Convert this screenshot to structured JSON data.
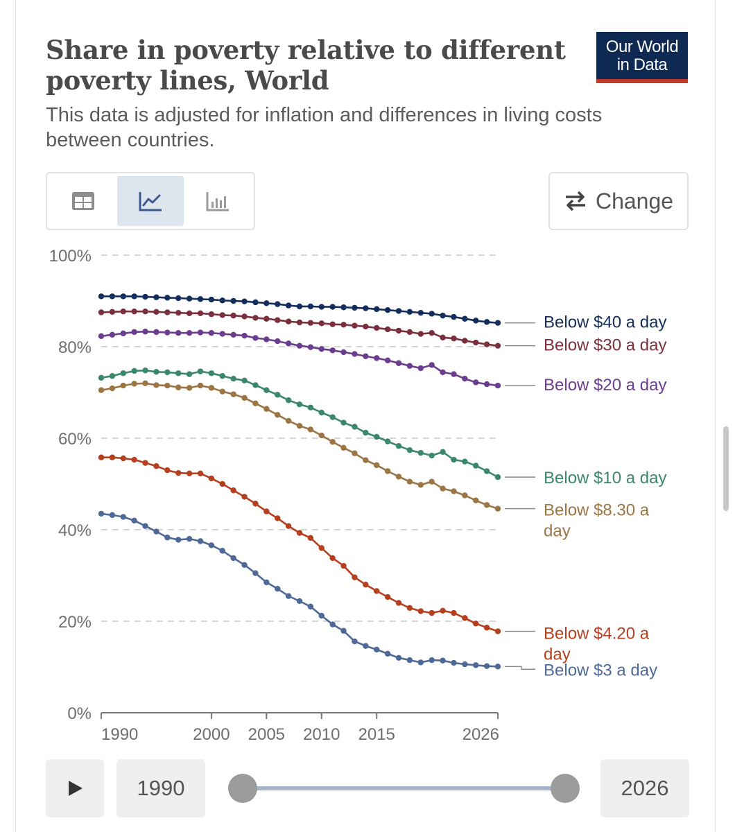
{
  "header": {
    "title": "Share in poverty relative to different poverty lines, World",
    "subtitle": "This data is adjusted for inflation and differences in living costs between countries.",
    "logo_line1": "Our World",
    "logo_line2": "in Data"
  },
  "toolbar": {
    "tabs": [
      {
        "name": "table",
        "icon": "table-icon",
        "active": false
      },
      {
        "name": "line-chart",
        "icon": "line-chart-icon",
        "active": true
      },
      {
        "name": "bar-chart",
        "icon": "bar-chart-icon",
        "active": false
      }
    ],
    "change_label": "Change",
    "change_icon": "swap-arrows-icon"
  },
  "timeline": {
    "start_year": "1990",
    "end_year": "2026",
    "play_icon": "play-icon",
    "range": [
      1990,
      2026
    ]
  },
  "colors": {
    "logo_bg": "#0f2a52",
    "logo_accent": "#c0392b",
    "active_tab": "#dde5ef"
  },
  "chart_data": {
    "type": "line",
    "title": "Share in poverty relative to different poverty lines, World",
    "xlabel": "",
    "ylabel": "",
    "xlim": [
      1990,
      2026
    ],
    "ylim": [
      0,
      100
    ],
    "x_ticks": [
      1990,
      2000,
      2005,
      2010,
      2015,
      2026
    ],
    "y_ticks": [
      {
        "value": 0,
        "label": "0%"
      },
      {
        "value": 20,
        "label": "20%"
      },
      {
        "value": 40,
        "label": "40%"
      },
      {
        "value": 60,
        "label": "60%"
      },
      {
        "value": 80,
        "label": "80%"
      },
      {
        "value": 100,
        "label": "100%"
      }
    ],
    "grid": "horizontal-dashed",
    "legend": "inline-right",
    "x": [
      1990,
      1991,
      1992,
      1993,
      1994,
      1995,
      1996,
      1997,
      1998,
      1999,
      2000,
      2001,
      2002,
      2003,
      2004,
      2005,
      2006,
      2007,
      2008,
      2009,
      2010,
      2011,
      2012,
      2013,
      2014,
      2015,
      2016,
      2017,
      2018,
      2019,
      2020,
      2021,
      2022,
      2023,
      2024,
      2025,
      2026
    ],
    "series": [
      {
        "name": "Below $40 a day",
        "color": "#132e5c",
        "label_lines": [
          "Below $40 a day"
        ],
        "label_value": 85.5,
        "values": [
          91.0,
          91.0,
          91.0,
          91.0,
          90.9,
          90.8,
          90.7,
          90.6,
          90.5,
          90.4,
          90.3,
          90.1,
          90.0,
          89.9,
          89.7,
          89.5,
          89.3,
          89.0,
          88.8,
          88.8,
          88.7,
          88.7,
          88.6,
          88.5,
          88.4,
          88.2,
          88.0,
          87.8,
          87.6,
          87.4,
          87.2,
          86.8,
          86.5,
          86.1,
          85.7,
          85.4,
          85.2
        ]
      },
      {
        "name": "Below $30 a day",
        "color": "#7a2f3c",
        "label_lines": [
          "Below $30 a day"
        ],
        "label_value": 80.5,
        "values": [
          87.5,
          87.6,
          87.7,
          87.7,
          87.7,
          87.6,
          87.5,
          87.4,
          87.3,
          87.3,
          87.1,
          86.9,
          86.8,
          86.6,
          86.3,
          86.1,
          85.8,
          85.5,
          85.3,
          85.2,
          85.1,
          84.9,
          84.8,
          84.6,
          84.4,
          84.1,
          83.8,
          83.5,
          83.2,
          82.8,
          83.0,
          82.0,
          81.8,
          81.3,
          80.9,
          80.5,
          80.2
        ]
      },
      {
        "name": "Below $20 a day",
        "color": "#6b3d8f",
        "label_lines": [
          "Below $20 a day"
        ],
        "label_value": 71.8,
        "values": [
          82.3,
          82.6,
          82.9,
          83.2,
          83.3,
          83.2,
          83.1,
          83.0,
          83.0,
          83.1,
          83.0,
          82.8,
          82.6,
          82.4,
          81.9,
          81.6,
          81.2,
          80.7,
          80.2,
          79.9,
          79.5,
          79.2,
          78.8,
          78.4,
          77.9,
          77.5,
          77.0,
          76.4,
          75.8,
          75.3,
          76.0,
          74.4,
          74.0,
          73.0,
          72.2,
          71.8,
          71.5
        ]
      },
      {
        "name": "Below $10 a day",
        "color": "#3a8769",
        "label_lines": [
          "Below $10 a day"
        ],
        "label_value": 51.5,
        "values": [
          73.2,
          73.6,
          74.2,
          74.7,
          74.8,
          74.5,
          74.4,
          74.2,
          74.0,
          74.6,
          74.2,
          73.6,
          73.0,
          72.6,
          71.6,
          70.5,
          69.5,
          68.3,
          67.4,
          66.7,
          65.6,
          64.6,
          63.4,
          62.5,
          61.2,
          60.3,
          59.3,
          58.3,
          57.4,
          56.8,
          56.2,
          57.0,
          55.3,
          54.9,
          54.0,
          52.8,
          51.5
        ]
      },
      {
        "name": "Below $8.30 a day",
        "color": "#9c7544",
        "label_lines": [
          "Below $8.30 a",
          "day"
        ],
        "label_value": 44.5,
        "values": [
          70.5,
          70.9,
          71.5,
          71.9,
          72.0,
          71.6,
          71.5,
          71.1,
          71.0,
          71.5,
          71.0,
          70.2,
          69.6,
          68.8,
          67.6,
          66.4,
          65.1,
          63.8,
          62.7,
          61.9,
          60.6,
          59.2,
          57.9,
          56.7,
          55.2,
          54.1,
          52.8,
          51.6,
          50.5,
          49.8,
          50.5,
          49.0,
          48.4,
          47.5,
          46.4,
          45.4,
          44.6
        ]
      },
      {
        "name": "Below $4.20 a day",
        "color": "#b5401f",
        "label_lines": [
          "Below $4.20 a",
          "day"
        ],
        "label_value": 17.5,
        "values": [
          55.8,
          55.8,
          55.6,
          55.3,
          54.6,
          53.9,
          53.0,
          52.4,
          52.3,
          52.3,
          51.2,
          50.0,
          48.6,
          47.2,
          45.7,
          44.0,
          42.5,
          40.8,
          39.3,
          38.2,
          36.0,
          33.8,
          32.1,
          29.6,
          28.0,
          26.6,
          25.3,
          24.0,
          22.9,
          22.2,
          21.8,
          22.3,
          21.8,
          20.7,
          19.5,
          18.6,
          17.8
        ]
      },
      {
        "name": "Below $3 a day",
        "color": "#4e6898",
        "label_lines": [
          "Below $3 a day"
        ],
        "label_value": 9.5,
        "values": [
          43.5,
          43.2,
          42.8,
          42.0,
          40.8,
          39.6,
          38.3,
          37.8,
          38.0,
          37.5,
          36.6,
          35.4,
          33.8,
          32.3,
          30.5,
          28.5,
          27.1,
          25.5,
          24.4,
          23.2,
          21.2,
          19.3,
          17.9,
          15.6,
          14.6,
          13.8,
          12.9,
          12.0,
          11.5,
          11.0,
          11.5,
          11.4,
          10.9,
          10.6,
          10.4,
          10.2,
          10.1
        ]
      }
    ]
  }
}
